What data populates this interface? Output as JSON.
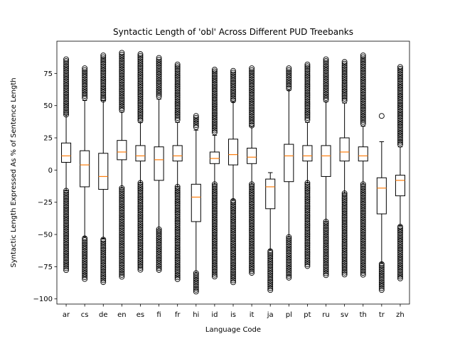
{
  "chart_data": {
    "type": "boxplot",
    "title": "Syntactic Length of 'obl' Across Different PUD Treebanks",
    "xlabel": "Language Code",
    "ylabel": "Syntactic Length Expressed As % of Sentence Length",
    "ylim": [
      -104,
      100
    ],
    "yticks": [
      -100,
      -75,
      -50,
      -25,
      0,
      25,
      50,
      75
    ],
    "grid": false,
    "categories": [
      "ar",
      "cs",
      "de",
      "en",
      "es",
      "fi",
      "fr",
      "hi",
      "id",
      "is",
      "it",
      "ja",
      "pl",
      "pt",
      "ru",
      "sv",
      "th",
      "tr",
      "zh"
    ],
    "boxes": [
      {
        "label": "ar",
        "whisker_low": -16,
        "q1": 6,
        "median": 11,
        "q3": 21,
        "whisker_high": 43,
        "fliers_low_range": [
          -79,
          -16
        ],
        "fliers_high_range": [
          43,
          86
        ]
      },
      {
        "label": "cs",
        "whisker_low": -52,
        "q1": -13,
        "median": 4,
        "q3": 15,
        "whisker_high": 54,
        "fliers_low_range": [
          -85,
          -53
        ],
        "fliers_high_range": [
          56,
          79
        ]
      },
      {
        "label": "de",
        "whisker_low": -53,
        "q1": -15,
        "median": -5,
        "q3": 13,
        "whisker_high": 54,
        "fliers_low_range": [
          -87,
          -54
        ],
        "fliers_high_range": [
          54,
          89
        ]
      },
      {
        "label": "en",
        "whisker_low": -14,
        "q1": 8,
        "median": 14,
        "q3": 23,
        "whisker_high": 45,
        "fliers_low_range": [
          -84,
          -14
        ],
        "fliers_high_range": [
          46,
          91
        ]
      },
      {
        "label": "es",
        "whisker_low": -10,
        "q1": 7,
        "median": 11,
        "q3": 19,
        "whisker_high": 37,
        "fliers_low_range": [
          -78,
          -10
        ],
        "fliers_high_range": [
          38,
          90
        ]
      },
      {
        "label": "fi",
        "whisker_low": -46,
        "q1": -8,
        "median": 8,
        "q3": 18,
        "whisker_high": 55,
        "fliers_low_range": [
          -78,
          -46
        ],
        "fliers_high_range": [
          56,
          87
        ]
      },
      {
        "label": "fr",
        "whisker_low": -13,
        "q1": 7,
        "median": 11,
        "q3": 19,
        "whisker_high": 37,
        "fliers_low_range": [
          -86,
          -13
        ],
        "fliers_high_range": [
          38,
          82
        ]
      },
      {
        "label": "hi",
        "whisker_low": -80,
        "q1": -40,
        "median": -21,
        "q3": -11,
        "whisker_high": 31,
        "fliers_low_range": [
          -95,
          -80
        ],
        "fliers_high_range": [
          33,
          42
        ]
      },
      {
        "label": "id",
        "whisker_low": -11,
        "q1": 5,
        "median": 9,
        "q3": 14,
        "whisker_high": 27,
        "fliers_low_range": [
          -84,
          -11
        ],
        "fliers_high_range": [
          28,
          78
        ]
      },
      {
        "label": "is",
        "whisker_low": -23,
        "q1": 4,
        "median": 12,
        "q3": 24,
        "whisker_high": 53,
        "fliers_low_range": [
          -88,
          -24
        ],
        "fliers_high_range": [
          54,
          77
        ]
      },
      {
        "label": "it",
        "whisker_low": -11,
        "q1": 5,
        "median": 10,
        "q3": 17,
        "whisker_high": 34,
        "fliers_low_range": [
          -80,
          -11
        ],
        "fliers_high_range": [
          34,
          79
        ]
      },
      {
        "label": "ja",
        "whisker_low": -62,
        "q1": -30,
        "median": -13,
        "q3": -7,
        "whisker_high": -2,
        "fliers_low_range": [
          -94,
          -63
        ],
        "fliers_high_range": []
      },
      {
        "label": "pl",
        "whisker_low": -52,
        "q1": -9,
        "median": 11,
        "q3": 20,
        "whisker_high": 62,
        "fliers_low_range": [
          -84,
          -52
        ],
        "fliers_high_range": [
          63,
          79
        ]
      },
      {
        "label": "pt",
        "whisker_low": -10,
        "q1": 7,
        "median": 11,
        "q3": 19,
        "whisker_high": 37,
        "fliers_low_range": [
          -75,
          -10
        ],
        "fliers_high_range": [
          38,
          82
        ]
      },
      {
        "label": "ru",
        "whisker_low": -40,
        "q1": -5,
        "median": 11,
        "q3": 19,
        "whisker_high": 53,
        "fliers_low_range": [
          -82,
          -40
        ],
        "fliers_high_range": [
          54,
          86
        ]
      },
      {
        "label": "sv",
        "whisker_low": -18,
        "q1": 7,
        "median": 14,
        "q3": 25,
        "whisker_high": 52,
        "fliers_low_range": [
          -82,
          -18
        ],
        "fliers_high_range": [
          53,
          84
        ]
      },
      {
        "label": "th",
        "whisker_low": -11,
        "q1": 7,
        "median": 11,
        "q3": 18,
        "whisker_high": 34,
        "fliers_low_range": [
          -82,
          -11
        ],
        "fliers_high_range": [
          35,
          89
        ]
      },
      {
        "label": "tr",
        "whisker_low": -72,
        "q1": -34,
        "median": -14,
        "q3": -6,
        "whisker_high": 22,
        "fliers_low_range": [
          -94,
          -73
        ],
        "fliers_high_range": [
          42,
          42
        ]
      },
      {
        "label": "zh",
        "whisker_low": -43,
        "q1": -20,
        "median": -8,
        "q3": -4,
        "whisker_high": 18,
        "fliers_low_range": [
          -85,
          -44
        ],
        "fliers_high_range": [
          19,
          80
        ]
      }
    ],
    "colors": {
      "box": "#000000",
      "median": "#ff7f0e",
      "flier": "#000000",
      "background": "#ffffff"
    }
  }
}
